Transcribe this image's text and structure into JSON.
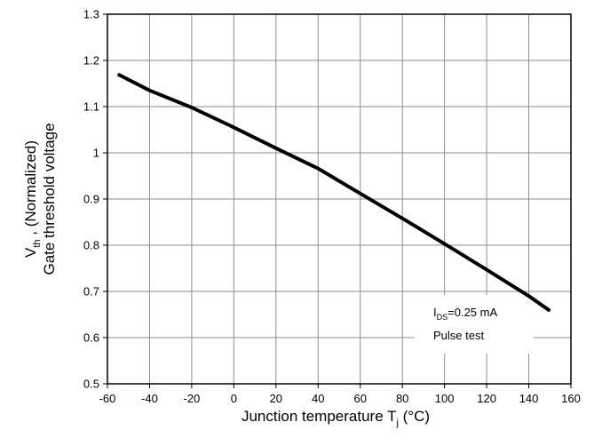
{
  "chart_data": {
    "type": "line",
    "xlabel": {
      "main": "Junction temperature T",
      "sub": "j",
      "unit": " (°C)"
    },
    "ylabel": {
      "line1": {
        "main": "V",
        "sub": "th",
        "rest": " , (Normalized)"
      },
      "line2": "Gate threshold voltage"
    },
    "xlim": [
      -60,
      160
    ],
    "ylim": [
      0.5,
      1.3
    ],
    "x_ticks": [
      -60,
      -40,
      -20,
      0,
      20,
      40,
      60,
      80,
      100,
      120,
      140,
      160
    ],
    "y_ticks": [
      0.5,
      0.6,
      0.7,
      0.8,
      0.9,
      1.0,
      1.1,
      1.2,
      1.3
    ],
    "x_tick_labels": [
      "-60",
      "-40",
      "-20",
      "0",
      "20",
      "40",
      "60",
      "80",
      "100",
      "120",
      "140",
      "160"
    ],
    "y_tick_labels": [
      "0.5",
      "0.6",
      "0.7",
      "0.8",
      "0.9",
      "1",
      "1.1",
      "1.2",
      "1.3"
    ],
    "grid": true,
    "annotation": {
      "line1": {
        "main": "I",
        "sub": "DS",
        "rest": "=0.25 mA"
      },
      "line2": "Pulse test",
      "placement": "bottom-right"
    },
    "series": [
      {
        "color": "#000000",
        "x": [
          -55,
          -40,
          -20,
          0,
          20,
          40,
          60,
          80,
          100,
          120,
          140,
          150
        ],
        "y": [
          1.17,
          1.135,
          1.098,
          1.055,
          1.01,
          0.966,
          0.912,
          0.858,
          0.803,
          0.747,
          0.69,
          0.658
        ]
      }
    ]
  }
}
